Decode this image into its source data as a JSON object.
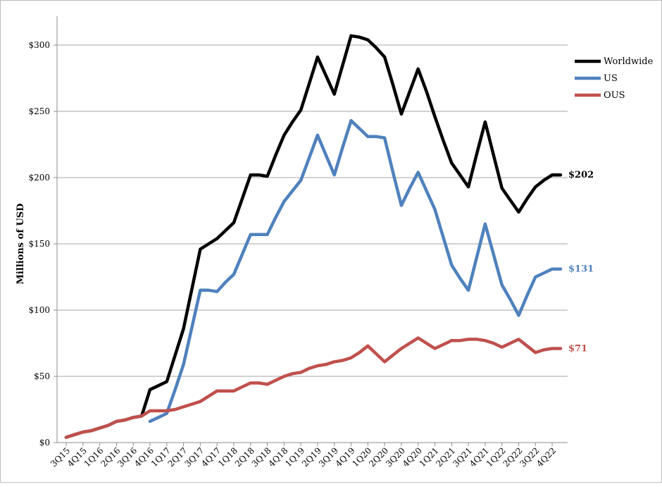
{
  "chart_data": {
    "type": "line",
    "title": "",
    "xlabel": "",
    "ylabel": "Millions of USD",
    "ylim": [
      0,
      320
    ],
    "yticks": [
      0,
      50,
      100,
      150,
      200,
      250,
      300
    ],
    "ytick_labels": [
      "$0",
      "$50",
      "$100",
      "$150",
      "$200",
      "$250",
      "$300"
    ],
    "grid": "horizontal",
    "legend_position": "top-right",
    "categories": [
      "3Q15",
      "4Q15",
      "1Q16",
      "2Q16",
      "3Q16",
      "4Q16",
      "1Q17",
      "2Q17",
      "3Q17",
      "4Q17",
      "1Q18",
      "2Q18",
      "3Q18",
      "4Q18",
      "1Q19",
      "2Q19",
      "3Q19",
      "4Q19",
      "1Q20",
      "2Q20",
      "3Q20",
      "4Q20",
      "1Q21",
      "2Q21",
      "3Q21",
      "4Q21",
      "1Q22",
      "2Q22",
      "3Q22",
      "4Q22"
    ],
    "x": [
      "3Q15",
      "3Q15",
      "4Q15",
      "4Q15",
      "1Q16",
      "1Q16",
      "2Q16",
      "2Q16",
      "3Q16",
      "3Q16",
      "4Q16",
      "4Q16",
      "1Q17",
      "1Q17",
      "2Q17",
      "2Q17",
      "3Q17",
      "3Q17",
      "4Q17",
      "4Q17",
      "1Q18",
      "1Q18",
      "2Q18",
      "2Q18",
      "3Q18",
      "3Q18",
      "4Q18",
      "4Q18",
      "1Q19",
      "1Q19",
      "2Q19",
      "2Q19",
      "3Q19",
      "3Q19",
      "4Q19",
      "4Q19",
      "1Q20",
      "1Q20",
      "2Q20",
      "2Q20",
      "3Q20",
      "3Q20",
      "4Q20",
      "4Q20",
      "1Q21",
      "1Q21",
      "2Q21",
      "2Q21",
      "3Q21",
      "3Q21",
      "4Q21",
      "4Q21",
      "1Q22",
      "1Q22",
      "2Q22",
      "2Q22",
      "3Q22",
      "3Q22",
      "4Q22",
      "4Q22"
    ],
    "series": [
      {
        "name": "Worldwide",
        "color": "#000000",
        "values": [
          4,
          6,
          8,
          9,
          11,
          13,
          16,
          17,
          19,
          20,
          40,
          43,
          46,
          66,
          86,
          116,
          146,
          150,
          154,
          160,
          166,
          184,
          202,
          202,
          201,
          217,
          232,
          242,
          251,
          271,
          291,
          277,
          263,
          285,
          307,
          306,
          304,
          298,
          291,
          270,
          248,
          265,
          282,
          265,
          246,
          228,
          211,
          202,
          193,
          218,
          242,
          217,
          192,
          183,
          174,
          184,
          193,
          198,
          202,
          202
        ],
        "end_label": "$202"
      },
      {
        "name": "US",
        "color": "#4f81bd",
        "values": [
          null,
          null,
          null,
          null,
          null,
          null,
          null,
          null,
          null,
          null,
          16,
          19,
          22,
          40,
          59,
          87,
          115,
          115,
          114,
          121,
          127,
          142,
          157,
          157,
          157,
          170,
          182,
          190,
          198,
          215,
          232,
          217,
          202,
          223,
          243,
          237,
          231,
          231,
          230,
          204,
          179,
          192,
          204,
          190,
          176,
          155,
          134,
          124,
          115,
          140,
          165,
          142,
          119,
          108,
          96,
          111,
          125,
          128,
          131,
          131
        ],
        "end_label": "$131"
      },
      {
        "name": "OUS",
        "color": "#c0504d",
        "values": [
          4,
          6,
          8,
          9,
          11,
          13,
          16,
          17,
          19,
          20,
          24,
          24,
          24,
          25,
          27,
          29,
          31,
          35,
          39,
          39,
          39,
          42,
          45,
          45,
          44,
          47,
          50,
          52,
          53,
          56,
          58,
          59,
          61,
          62,
          64,
          68,
          73,
          67,
          61,
          66,
          71,
          75,
          79,
          75,
          71,
          74,
          77,
          77,
          78,
          78,
          77,
          75,
          72,
          75,
          78,
          73,
          68,
          70,
          71,
          71
        ],
        "end_label": "$71"
      }
    ]
  }
}
